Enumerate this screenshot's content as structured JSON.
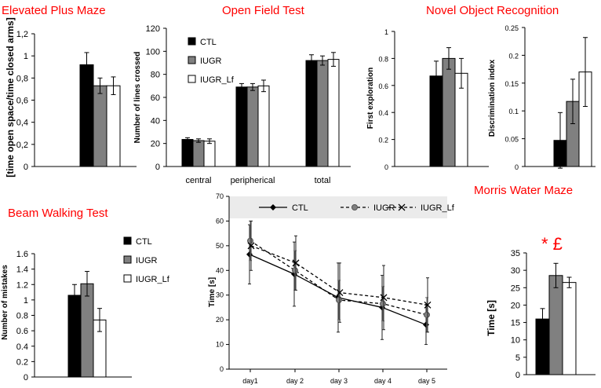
{
  "colors": {
    "ctl": "#000000",
    "iugr": "#808080",
    "iugr_lf": "#ffffff",
    "title": "#ff0000",
    "legend_band": "#ebebeb"
  },
  "chart_data": [
    {
      "id": "epm",
      "type": "bar",
      "title": "Elevated Plus Maze",
      "xlabel": "",
      "ylabel": "[time open space/time closed arms]",
      "ylim": [
        0,
        1.2
      ],
      "yticks": [
        0,
        0.2,
        0.4,
        0.6,
        0.8,
        1,
        1.2
      ],
      "ytick_labels": [
        "0",
        "0,2",
        "0,4",
        "0,6",
        "0,8",
        "1",
        "1,2"
      ],
      "categories": [
        ""
      ],
      "series": [
        {
          "name": "CTL",
          "values": [
            0.92
          ],
          "errors": [
            0.11
          ]
        },
        {
          "name": "IUGR",
          "values": [
            0.73
          ],
          "errors": [
            0.07
          ]
        },
        {
          "name": "IUGR_Lf",
          "values": [
            0.73
          ],
          "errors": [
            0.08
          ]
        }
      ]
    },
    {
      "id": "oft",
      "type": "bar",
      "title": "Open Field Test",
      "xlabel": "",
      "ylabel": "Number of lines crossed",
      "ylim": [
        0,
        120
      ],
      "yticks": [
        0,
        20,
        40,
        60,
        80,
        100,
        120
      ],
      "ytick_labels": [
        "0",
        "20",
        "40",
        "60",
        "80",
        "100",
        "120"
      ],
      "categories": [
        "central",
        "peripherical",
        "total"
      ],
      "legend": [
        "CTL",
        "IUGR",
        "IUGR_Lf"
      ],
      "series": [
        {
          "name": "CTL",
          "values": [
            23.5,
            69,
            92
          ],
          "errors": [
            1.5,
            3,
            5
          ]
        },
        {
          "name": "IUGR",
          "values": [
            22.5,
            69,
            92
          ],
          "errors": [
            1.5,
            3,
            4
          ]
        },
        {
          "name": "IUGR_Lf",
          "values": [
            22,
            70,
            93
          ],
          "errors": [
            2,
            5,
            6
          ]
        }
      ]
    },
    {
      "id": "nor_first",
      "type": "bar",
      "title": "Novel Object Recognition",
      "xlabel": "",
      "ylabel": "First exploration",
      "ylim": [
        0,
        1
      ],
      "yticks": [
        0,
        0.2,
        0.4,
        0.6,
        0.8,
        1
      ],
      "ytick_labels": [
        "0",
        "0.2",
        "0.4",
        "0.6",
        "0.8",
        "1"
      ],
      "categories": [
        ""
      ],
      "series": [
        {
          "name": "CTL",
          "values": [
            0.67
          ],
          "errors": [
            0.11
          ]
        },
        {
          "name": "IUGR",
          "values": [
            0.8
          ],
          "errors": [
            0.08
          ]
        },
        {
          "name": "IUGR_Lf",
          "values": [
            0.69
          ],
          "errors": [
            0.11
          ]
        }
      ]
    },
    {
      "id": "nor_di",
      "type": "bar",
      "title": "",
      "xlabel": "",
      "ylabel": "Discrimination index",
      "ylim": [
        0,
        0.25
      ],
      "yticks": [
        0,
        0.05,
        0.1,
        0.15,
        0.2,
        0.25
      ],
      "ytick_labels": [
        "0",
        "0.05",
        "0.1",
        "0.15",
        "0.2",
        "0.25"
      ],
      "categories": [
        ""
      ],
      "series": [
        {
          "name": "CTL",
          "values": [
            0.047
          ],
          "errors": [
            0.05
          ]
        },
        {
          "name": "IUGR",
          "values": [
            0.117
          ],
          "errors": [
            0.04
          ]
        },
        {
          "name": "IUGR_Lf",
          "values": [
            0.17
          ],
          "errors": [
            0.062
          ]
        }
      ]
    },
    {
      "id": "bwt",
      "type": "bar",
      "title": "Beam Walking Test",
      "xlabel": "",
      "ylabel": "Number of mistakes",
      "ylim": [
        0,
        1.6
      ],
      "yticks": [
        0,
        0.2,
        0.4,
        0.6,
        0.8,
        1,
        1.2,
        1.4,
        1.6
      ],
      "ytick_labels": [
        "0",
        "0.2",
        "0.4",
        "0.6",
        "0.8",
        "1",
        "1.2",
        "1.4",
        "1.6"
      ],
      "categories": [
        ""
      ],
      "legend": [
        "CTL",
        "IUGR",
        "IUGR_Lf"
      ],
      "series": [
        {
          "name": "CTL",
          "values": [
            1.06
          ],
          "errors": [
            0.14
          ]
        },
        {
          "name": "IUGR",
          "values": [
            1.21
          ],
          "errors": [
            0.16
          ]
        },
        {
          "name": "IUGR_Lf",
          "values": [
            0.74
          ],
          "errors": [
            0.15
          ]
        }
      ]
    },
    {
      "id": "mwm_line",
      "type": "line",
      "title": "Morris Water Maze",
      "xlabel": "",
      "ylabel": "Time [s]",
      "ylim": [
        0,
        70
      ],
      "yticks": [
        0,
        10,
        20,
        30,
        40,
        50,
        60,
        70
      ],
      "ytick_labels": [
        "0",
        "10",
        "20",
        "30",
        "40",
        "50",
        "60",
        "70"
      ],
      "x": [
        "day1",
        "day 2",
        "day 3",
        "day 4",
        "day 5"
      ],
      "legend": [
        "CTL",
        "IUGR",
        "IUGR_Lf"
      ],
      "series": [
        {
          "name": "CTL",
          "values": [
            46.5,
            38.5,
            29,
            25,
            18
          ],
          "errors": [
            12,
            13,
            14,
            13,
            8
          ],
          "marker": "diamond",
          "dash": "solid"
        },
        {
          "name": "IUGR",
          "values": [
            52,
            40,
            28,
            26.5,
            22
          ],
          "errors": [
            8,
            8,
            8,
            7,
            7
          ],
          "marker": "circle",
          "dash": "dashed"
        },
        {
          "name": "IUGR_Lf",
          "values": [
            50,
            43,
            31,
            29,
            26
          ],
          "errors": [
            10,
            11,
            12,
            13,
            11
          ],
          "marker": "x",
          "dash": "dashed"
        }
      ]
    },
    {
      "id": "mwm_bar",
      "type": "bar",
      "title": "",
      "xlabel": "",
      "ylabel": "Time [s]",
      "annotation": "* £",
      "ylim": [
        0,
        35
      ],
      "yticks": [
        0,
        5,
        10,
        15,
        20,
        25,
        30,
        35
      ],
      "ytick_labels": [
        "0",
        "5",
        "10",
        "15",
        "20",
        "25",
        "30",
        "35"
      ],
      "categories": [
        ""
      ],
      "series": [
        {
          "name": "CTL",
          "values": [
            16
          ],
          "errors": [
            3
          ]
        },
        {
          "name": "IUGR",
          "values": [
            28.5
          ],
          "errors": [
            3.5
          ]
        },
        {
          "name": "IUGR_Lf",
          "values": [
            26.5
          ],
          "errors": [
            1.5
          ]
        }
      ]
    }
  ]
}
